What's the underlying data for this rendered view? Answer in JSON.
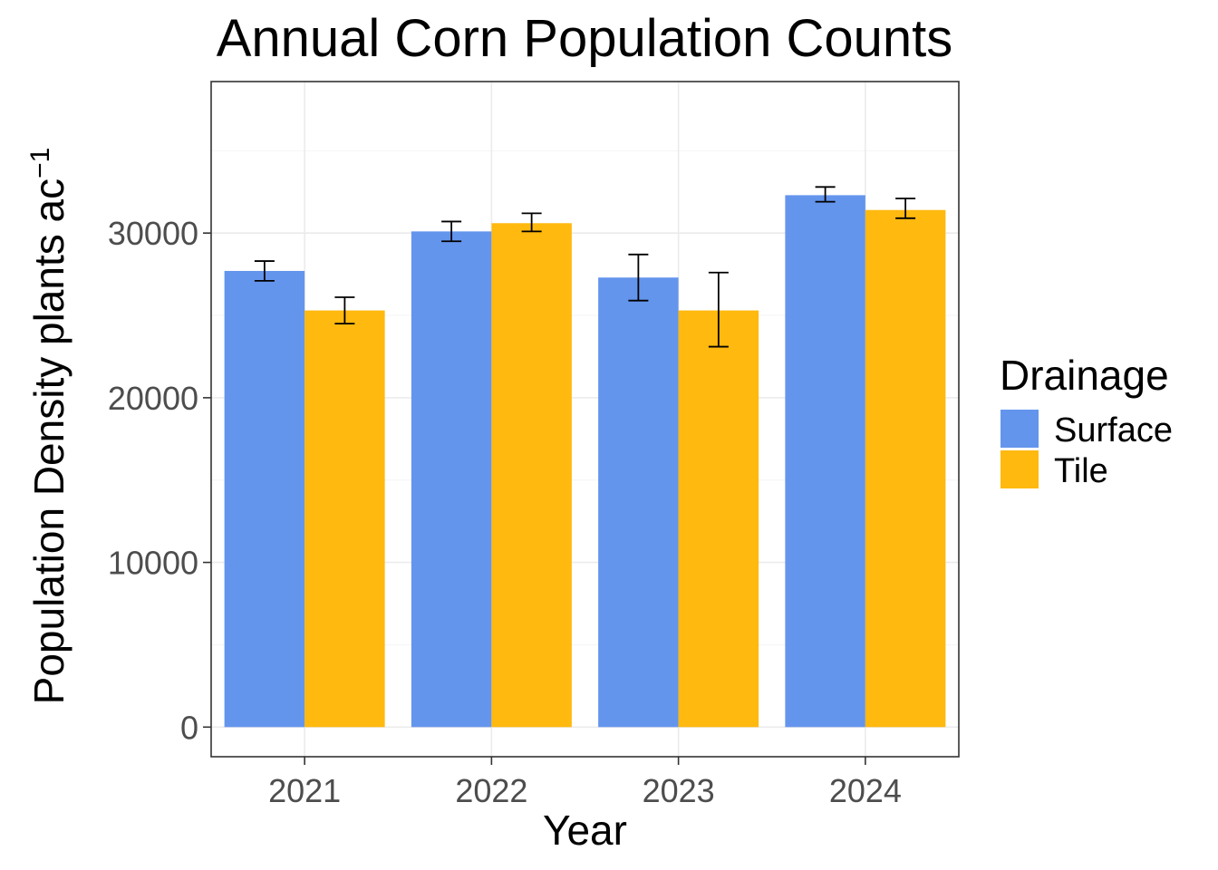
{
  "chart_data": {
    "type": "bar",
    "title": "Annual Corn Population Counts",
    "xlabel": "Year",
    "ylabel": "Population Density plants ac",
    "ylabel_superscript": "−1",
    "categories": [
      "2021",
      "2022",
      "2023",
      "2024"
    ],
    "series": [
      {
        "name": "Surface",
        "color": "#6495ED",
        "values": [
          27700,
          30100,
          27300,
          32300
        ],
        "error_low": [
          27100,
          29500,
          25900,
          31900
        ],
        "error_high": [
          28300,
          30700,
          28700,
          32800
        ]
      },
      {
        "name": "Tile",
        "color": "#FFB90F",
        "values": [
          25300,
          30600,
          25300,
          31400
        ],
        "error_low": [
          24500,
          30100,
          23100,
          30900
        ],
        "error_high": [
          26100,
          31200,
          27600,
          32100
        ]
      }
    ],
    "ylim": [
      -1800,
      39200
    ],
    "yticks": [
      0,
      10000,
      20000,
      30000
    ],
    "yticks_labels": [
      "0",
      "10000",
      "20000",
      "30000"
    ],
    "grid": true,
    "legend": {
      "title": "Drainage",
      "position": "right",
      "entries": [
        "Surface",
        "Tile"
      ]
    }
  }
}
